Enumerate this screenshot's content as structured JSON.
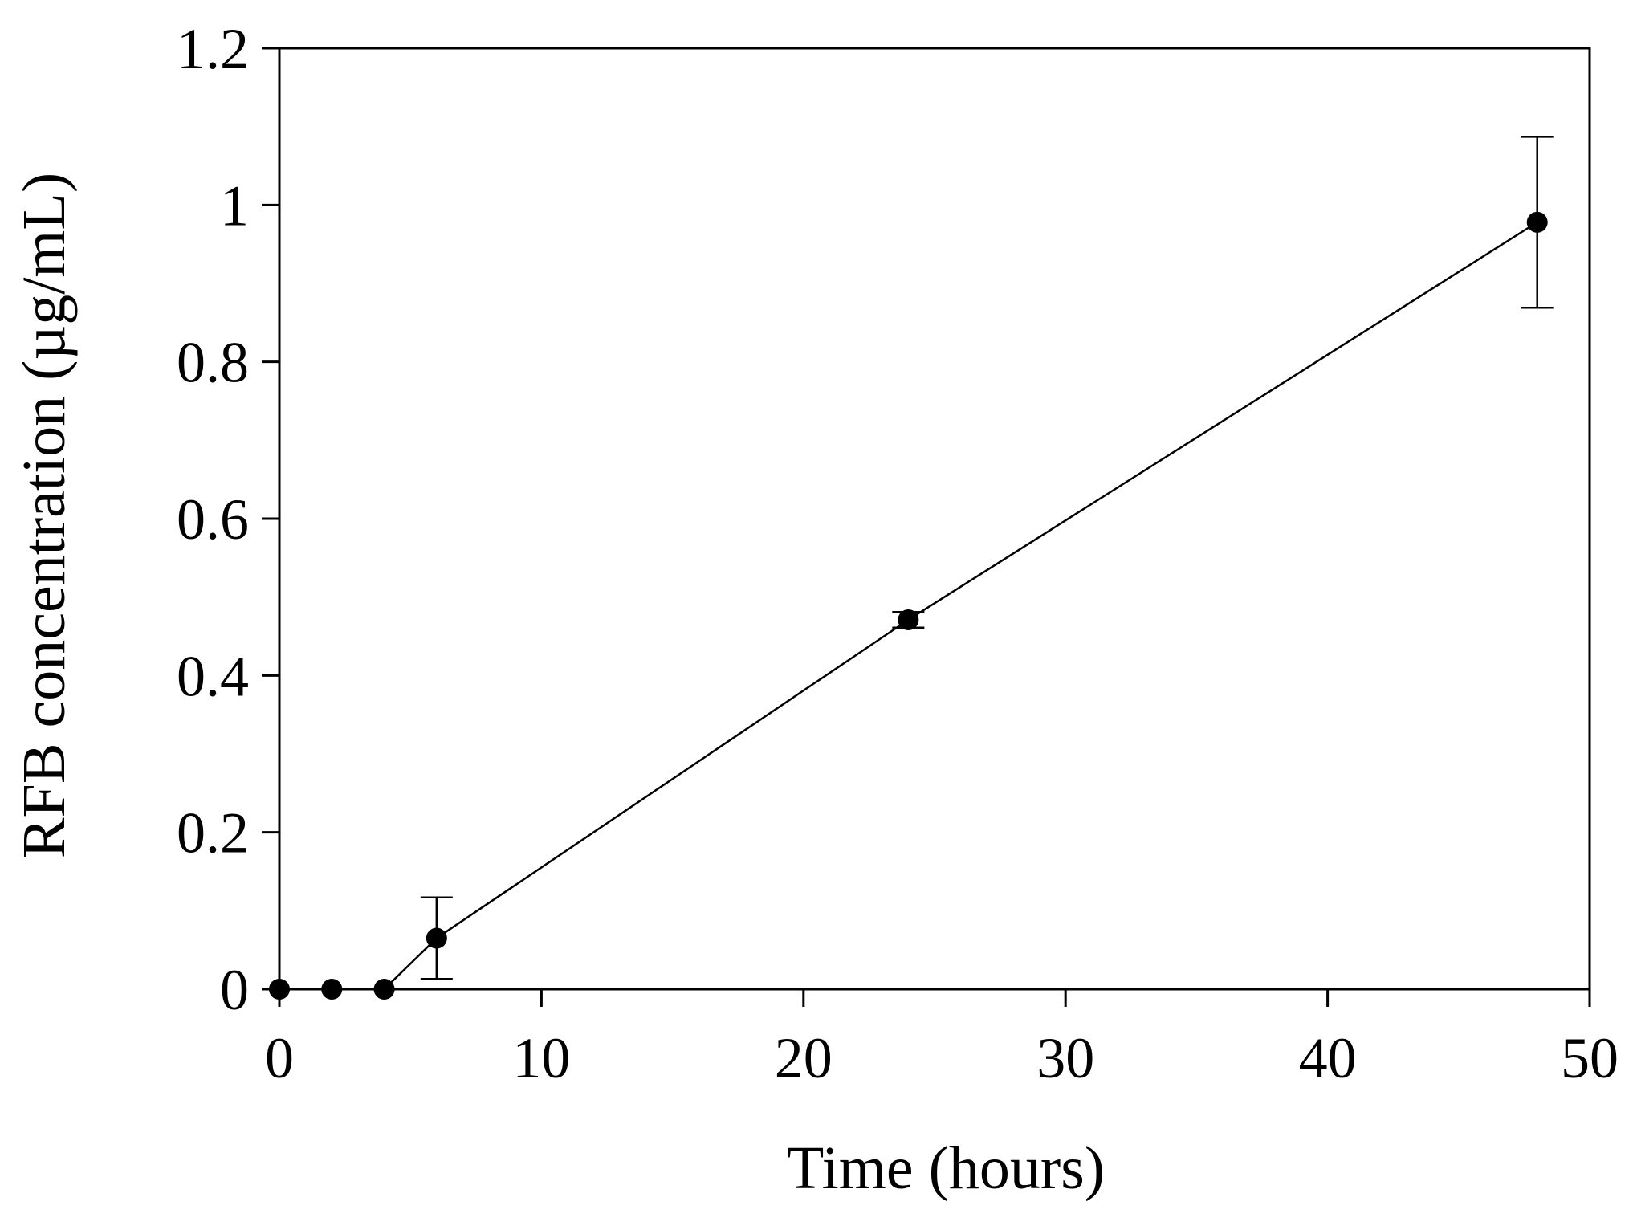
{
  "chart_data": {
    "type": "line",
    "title": "",
    "xlabel": "Time (hours)",
    "ylabel": "RFB concentration (µg/mL)",
    "xlim": [
      0,
      50
    ],
    "ylim": [
      0,
      1.2
    ],
    "x_ticks": [
      0,
      10,
      20,
      30,
      40,
      50
    ],
    "x_tick_labels": [
      "0",
      "10",
      "20",
      "30",
      "40",
      "50"
    ],
    "y_ticks": [
      0,
      0.2,
      0.4,
      0.6,
      0.8,
      1.0,
      1.2
    ],
    "y_tick_labels": [
      "0",
      "0.2",
      "0.4",
      "0.6",
      "0.8",
      "1",
      "1.2"
    ],
    "grid": false,
    "legend": "none",
    "series": [
      {
        "x": [
          0,
          2,
          4,
          6,
          24,
          48
        ],
        "y": [
          0,
          0,
          0,
          0.065,
          0.471,
          0.978
        ],
        "error": [
          0,
          0,
          0,
          0.052,
          0.01,
          0.109
        ],
        "color": "#000000",
        "marker": "filled-circle"
      }
    ]
  }
}
